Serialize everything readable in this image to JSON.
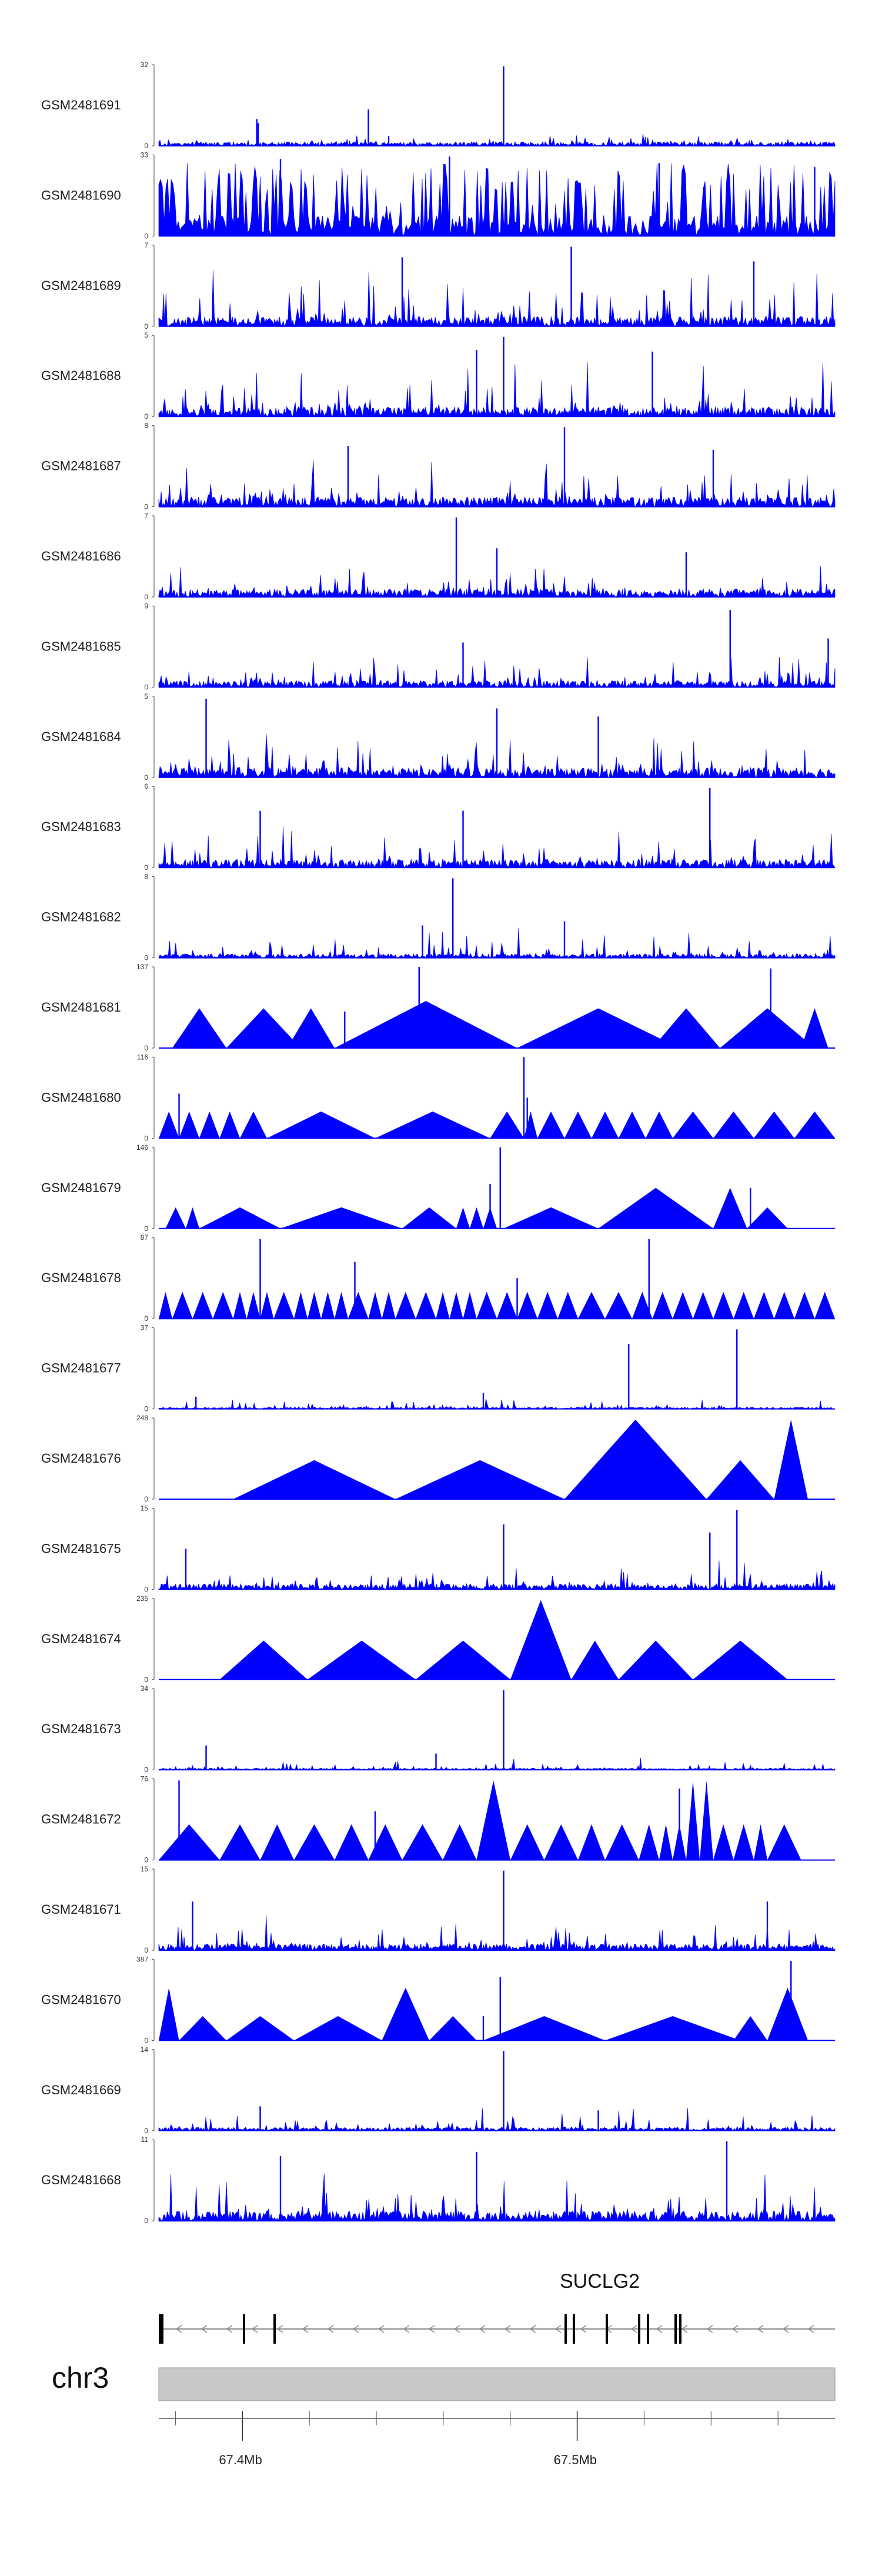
{
  "chart_data": {
    "type": "area",
    "title": "",
    "chromosome": "chr3",
    "x_range_mb": [
      67.375,
      67.577
    ],
    "axis_ticks": [
      {
        "pos_mb": 67.4,
        "label": "67.4Mb"
      },
      {
        "pos_mb": 67.5,
        "label": "67.5Mb"
      }
    ],
    "gene": {
      "name": "SUCLG2",
      "strand": "-"
    },
    "series": [
      {
        "name": "GSM2481691",
        "ymax": 32,
        "style": "dense",
        "seed": 11,
        "base": 0.05,
        "spike_scale": 0.12,
        "spikes": [
          [
            0.145,
            0.33
          ],
          [
            0.147,
            0.28
          ],
          [
            0.31,
            0.45
          ],
          [
            0.51,
            0.98
          ],
          [
            0.34,
            0.12
          ]
        ]
      },
      {
        "name": "GSM2481690",
        "ymax": 33,
        "style": "peaks",
        "seed": 12,
        "base": 0.25,
        "spike_scale": 0.7,
        "spikes": [
          [
            0.18,
            0.95
          ],
          [
            0.43,
            0.98
          ],
          [
            0.74,
            0.9
          ],
          [
            0.97,
            0.85
          ]
        ]
      },
      {
        "name": "GSM2481689",
        "ymax": 7,
        "style": "dense",
        "seed": 13,
        "base": 0.12,
        "spike_scale": 0.75,
        "spikes": [
          [
            0.61,
            0.98
          ],
          [
            0.36,
            0.85
          ],
          [
            0.88,
            0.8
          ]
        ]
      },
      {
        "name": "GSM2481688",
        "ymax": 5,
        "style": "dense",
        "seed": 14,
        "base": 0.12,
        "spike_scale": 0.7,
        "spikes": [
          [
            0.51,
            0.98
          ],
          [
            0.47,
            0.82
          ],
          [
            0.73,
            0.8
          ]
        ]
      },
      {
        "name": "GSM2481687",
        "ymax": 8,
        "style": "dense",
        "seed": 15,
        "base": 0.12,
        "spike_scale": 0.6,
        "spikes": [
          [
            0.6,
            0.98
          ],
          [
            0.28,
            0.75
          ],
          [
            0.82,
            0.7
          ]
        ]
      },
      {
        "name": "GSM2481686",
        "ymax": 7,
        "style": "dense",
        "seed": 16,
        "base": 0.1,
        "spike_scale": 0.5,
        "spikes": [
          [
            0.44,
            0.98
          ],
          [
            0.5,
            0.6
          ],
          [
            0.78,
            0.55
          ]
        ]
      },
      {
        "name": "GSM2481685",
        "ymax": 9,
        "style": "dense",
        "seed": 17,
        "base": 0.08,
        "spike_scale": 0.45,
        "spikes": [
          [
            0.845,
            0.95
          ],
          [
            0.45,
            0.55
          ],
          [
            0.99,
            0.6
          ]
        ]
      },
      {
        "name": "GSM2481684",
        "ymax": 5,
        "style": "dense",
        "seed": 18,
        "base": 0.12,
        "spike_scale": 0.55,
        "spikes": [
          [
            0.07,
            0.97
          ],
          [
            0.5,
            0.85
          ],
          [
            0.65,
            0.75
          ]
        ]
      },
      {
        "name": "GSM2481683",
        "ymax": 6,
        "style": "dense",
        "seed": 19,
        "base": 0.1,
        "spike_scale": 0.5,
        "spikes": [
          [
            0.815,
            0.98
          ],
          [
            0.15,
            0.7
          ],
          [
            0.45,
            0.7
          ]
        ]
      },
      {
        "name": "GSM2481682",
        "ymax": 8,
        "style": "dense",
        "seed": 20,
        "base": 0.05,
        "spike_scale": 0.35,
        "spikes": [
          [
            0.435,
            0.98
          ],
          [
            0.39,
            0.4
          ],
          [
            0.6,
            0.45
          ]
        ]
      },
      {
        "name": "GSM2481681",
        "ymax": 137,
        "style": "triangles",
        "seed": 21,
        "tris": [
          [
            0.02,
            0.1,
            0.49
          ],
          [
            0.1,
            0.21,
            0.49
          ],
          [
            0.19,
            0.26,
            0.49
          ],
          [
            0.26,
            0.53,
            0.58
          ],
          [
            0.53,
            0.77,
            0.49
          ],
          [
            0.73,
            0.83,
            0.49
          ],
          [
            0.83,
            0.97,
            0.49
          ],
          [
            0.95,
            0.99,
            0.49
          ]
        ],
        "spikes": [
          [
            0.385,
            1.0
          ],
          [
            0.905,
            0.98
          ],
          [
            0.275,
            0.45
          ]
        ]
      },
      {
        "name": "GSM2481680",
        "ymax": 116,
        "style": "triangles",
        "seed": 22,
        "tris": [
          [
            0.0,
            0.03,
            0.33
          ],
          [
            0.03,
            0.06,
            0.33
          ],
          [
            0.06,
            0.09,
            0.33
          ],
          [
            0.09,
            0.12,
            0.33
          ],
          [
            0.12,
            0.16,
            0.33
          ],
          [
            0.16,
            0.32,
            0.33
          ],
          [
            0.32,
            0.49,
            0.33
          ],
          [
            0.49,
            0.54,
            0.33
          ],
          [
            0.54,
            0.56,
            0.33
          ],
          [
            0.56,
            0.6,
            0.33
          ],
          [
            0.6,
            0.64,
            0.33
          ],
          [
            0.64,
            0.68,
            0.33
          ],
          [
            0.68,
            0.72,
            0.33
          ],
          [
            0.72,
            0.76,
            0.33
          ],
          [
            0.76,
            0.82,
            0.33
          ],
          [
            0.82,
            0.88,
            0.33
          ],
          [
            0.88,
            0.94,
            0.33
          ],
          [
            0.94,
            1.0,
            0.33
          ]
        ],
        "spikes": [
          [
            0.54,
            1.0
          ],
          [
            0.545,
            0.5
          ],
          [
            0.03,
            0.55
          ]
        ]
      },
      {
        "name": "GSM2481679",
        "ymax": 146,
        "style": "triangles",
        "seed": 23,
        "tris": [
          [
            0.01,
            0.04,
            0.26
          ],
          [
            0.04,
            0.06,
            0.26
          ],
          [
            0.06,
            0.18,
            0.26
          ],
          [
            0.18,
            0.36,
            0.26
          ],
          [
            0.36,
            0.44,
            0.26
          ],
          [
            0.44,
            0.46,
            0.26
          ],
          [
            0.46,
            0.48,
            0.26
          ],
          [
            0.48,
            0.5,
            0.26
          ],
          [
            0.51,
            0.65,
            0.26
          ],
          [
            0.65,
            0.82,
            0.5
          ],
          [
            0.82,
            0.87,
            0.5
          ],
          [
            0.87,
            0.93,
            0.26
          ]
        ],
        "spikes": [
          [
            0.505,
            1.0
          ],
          [
            0.49,
            0.55
          ],
          [
            0.875,
            0.5
          ]
        ]
      },
      {
        "name": "GSM2481678",
        "ymax": 87,
        "style": "triangles",
        "seed": 24,
        "tris": [
          [
            0.0,
            0.02,
            0.33
          ],
          [
            0.02,
            0.05,
            0.33
          ],
          [
            0.05,
            0.08,
            0.33
          ],
          [
            0.08,
            0.11,
            0.33
          ],
          [
            0.11,
            0.13,
            0.33
          ],
          [
            0.13,
            0.15,
            0.33
          ],
          [
            0.15,
            0.17,
            0.33
          ],
          [
            0.17,
            0.2,
            0.33
          ],
          [
            0.2,
            0.22,
            0.33
          ],
          [
            0.22,
            0.24,
            0.33
          ],
          [
            0.24,
            0.26,
            0.33
          ],
          [
            0.26,
            0.28,
            0.33
          ],
          [
            0.28,
            0.31,
            0.33
          ],
          [
            0.31,
            0.33,
            0.33
          ],
          [
            0.33,
            0.35,
            0.33
          ],
          [
            0.35,
            0.38,
            0.33
          ],
          [
            0.38,
            0.41,
            0.33
          ],
          [
            0.41,
            0.43,
            0.33
          ],
          [
            0.43,
            0.45,
            0.33
          ],
          [
            0.45,
            0.47,
            0.33
          ],
          [
            0.47,
            0.5,
            0.33
          ],
          [
            0.5,
            0.53,
            0.33
          ],
          [
            0.53,
            0.56,
            0.33
          ],
          [
            0.56,
            0.59,
            0.33
          ],
          [
            0.59,
            0.62,
            0.33
          ],
          [
            0.62,
            0.66,
            0.33
          ],
          [
            0.66,
            0.7,
            0.33
          ],
          [
            0.7,
            0.73,
            0.33
          ],
          [
            0.73,
            0.76,
            0.33
          ],
          [
            0.76,
            0.79,
            0.33
          ],
          [
            0.79,
            0.82,
            0.33
          ],
          [
            0.82,
            0.85,
            0.33
          ],
          [
            0.85,
            0.88,
            0.33
          ],
          [
            0.88,
            0.91,
            0.33
          ],
          [
            0.91,
            0.94,
            0.33
          ],
          [
            0.94,
            0.97,
            0.33
          ],
          [
            0.97,
            1.0,
            0.33
          ]
        ],
        "spikes": [
          [
            0.15,
            0.98
          ],
          [
            0.29,
            0.7
          ],
          [
            0.725,
            0.98
          ],
          [
            0.53,
            0.5
          ]
        ]
      },
      {
        "name": "GSM2481677",
        "ymax": 37,
        "style": "dense",
        "seed": 25,
        "base": 0.02,
        "spike_scale": 0.12,
        "spikes": [
          [
            0.695,
            0.8
          ],
          [
            0.855,
            0.98
          ],
          [
            0.48,
            0.2
          ],
          [
            0.055,
            0.15
          ]
        ]
      },
      {
        "name": "GSM2481676",
        "ymax": 248,
        "style": "triangles",
        "seed": 26,
        "tris": [
          [
            0.11,
            0.35,
            0.48
          ],
          [
            0.35,
            0.6,
            0.48
          ],
          [
            0.6,
            0.81,
            0.98
          ],
          [
            0.81,
            0.91,
            0.48
          ],
          [
            0.91,
            0.96,
            0.98
          ]
        ],
        "spikes": []
      },
      {
        "name": "GSM2481675",
        "ymax": 15,
        "style": "dense",
        "seed": 27,
        "base": 0.07,
        "spike_scale": 0.4,
        "spikes": [
          [
            0.51,
            0.8
          ],
          [
            0.855,
            0.98
          ],
          [
            0.815,
            0.7
          ],
          [
            0.04,
            0.5
          ]
        ]
      },
      {
        "name": "GSM2481674",
        "ymax": 235,
        "style": "triangles",
        "seed": 28,
        "tris": [
          [
            0.09,
            0.22,
            0.48
          ],
          [
            0.22,
            0.38,
            0.48
          ],
          [
            0.38,
            0.52,
            0.48
          ],
          [
            0.52,
            0.61,
            0.98
          ],
          [
            0.61,
            0.68,
            0.48
          ],
          [
            0.68,
            0.79,
            0.48
          ],
          [
            0.79,
            0.93,
            0.48
          ]
        ],
        "spikes": []
      },
      {
        "name": "GSM2481673",
        "ymax": 34,
        "style": "dense",
        "seed": 29,
        "base": 0.02,
        "spike_scale": 0.14,
        "spikes": [
          [
            0.51,
            0.98
          ],
          [
            0.07,
            0.3
          ],
          [
            0.41,
            0.2
          ]
        ]
      },
      {
        "name": "GSM2481672",
        "ymax": 76,
        "style": "triangles",
        "seed": 30,
        "tris": [
          [
            0.0,
            0.09,
            0.44
          ],
          [
            0.09,
            0.15,
            0.44
          ],
          [
            0.15,
            0.2,
            0.44
          ],
          [
            0.2,
            0.26,
            0.44
          ],
          [
            0.26,
            0.31,
            0.44
          ],
          [
            0.31,
            0.36,
            0.44
          ],
          [
            0.36,
            0.42,
            0.44
          ],
          [
            0.42,
            0.47,
            0.44
          ],
          [
            0.47,
            0.52,
            0.98
          ],
          [
            0.52,
            0.57,
            0.44
          ],
          [
            0.57,
            0.62,
            0.44
          ],
          [
            0.62,
            0.66,
            0.44
          ],
          [
            0.66,
            0.71,
            0.44
          ],
          [
            0.71,
            0.74,
            0.44
          ],
          [
            0.74,
            0.76,
            0.44
          ],
          [
            0.76,
            0.78,
            0.44
          ],
          [
            0.78,
            0.8,
            0.98
          ],
          [
            0.8,
            0.82,
            0.98
          ],
          [
            0.82,
            0.85,
            0.44
          ],
          [
            0.85,
            0.88,
            0.44
          ],
          [
            0.88,
            0.9,
            0.44
          ],
          [
            0.9,
            0.95,
            0.44
          ]
        ],
        "spikes": [
          [
            0.03,
            0.98
          ],
          [
            0.77,
            0.88
          ],
          [
            0.32,
            0.6
          ]
        ]
      },
      {
        "name": "GSM2481671",
        "ymax": 15,
        "style": "dense",
        "seed": 31,
        "base": 0.08,
        "spike_scale": 0.45,
        "spikes": [
          [
            0.51,
            0.98
          ],
          [
            0.05,
            0.6
          ],
          [
            0.9,
            0.6
          ]
        ]
      },
      {
        "name": "GSM2481670",
        "ymax": 387,
        "style": "triangles",
        "seed": 32,
        "tris": [
          [
            0.0,
            0.03,
            0.65
          ],
          [
            0.03,
            0.1,
            0.3
          ],
          [
            0.1,
            0.2,
            0.3
          ],
          [
            0.2,
            0.33,
            0.3
          ],
          [
            0.33,
            0.4,
            0.65
          ],
          [
            0.4,
            0.47,
            0.3
          ],
          [
            0.48,
            0.66,
            0.3
          ],
          [
            0.66,
            0.86,
            0.3
          ],
          [
            0.85,
            0.9,
            0.3
          ],
          [
            0.9,
            0.96,
            0.65
          ]
        ],
        "spikes": [
          [
            0.505,
            0.78
          ],
          [
            0.935,
            0.98
          ],
          [
            0.48,
            0.3
          ]
        ]
      },
      {
        "name": "GSM2481669",
        "ymax": 14,
        "style": "dense",
        "seed": 33,
        "base": 0.04,
        "spike_scale": 0.3,
        "spikes": [
          [
            0.51,
            0.98
          ],
          [
            0.15,
            0.3
          ],
          [
            0.65,
            0.25
          ]
        ]
      },
      {
        "name": "GSM2481668",
        "ymax": 11,
        "style": "dense",
        "seed": 34,
        "base": 0.12,
        "spike_scale": 0.6,
        "spikes": [
          [
            0.84,
            0.98
          ],
          [
            0.47,
            0.85
          ],
          [
            0.18,
            0.8
          ]
        ]
      }
    ]
  }
}
